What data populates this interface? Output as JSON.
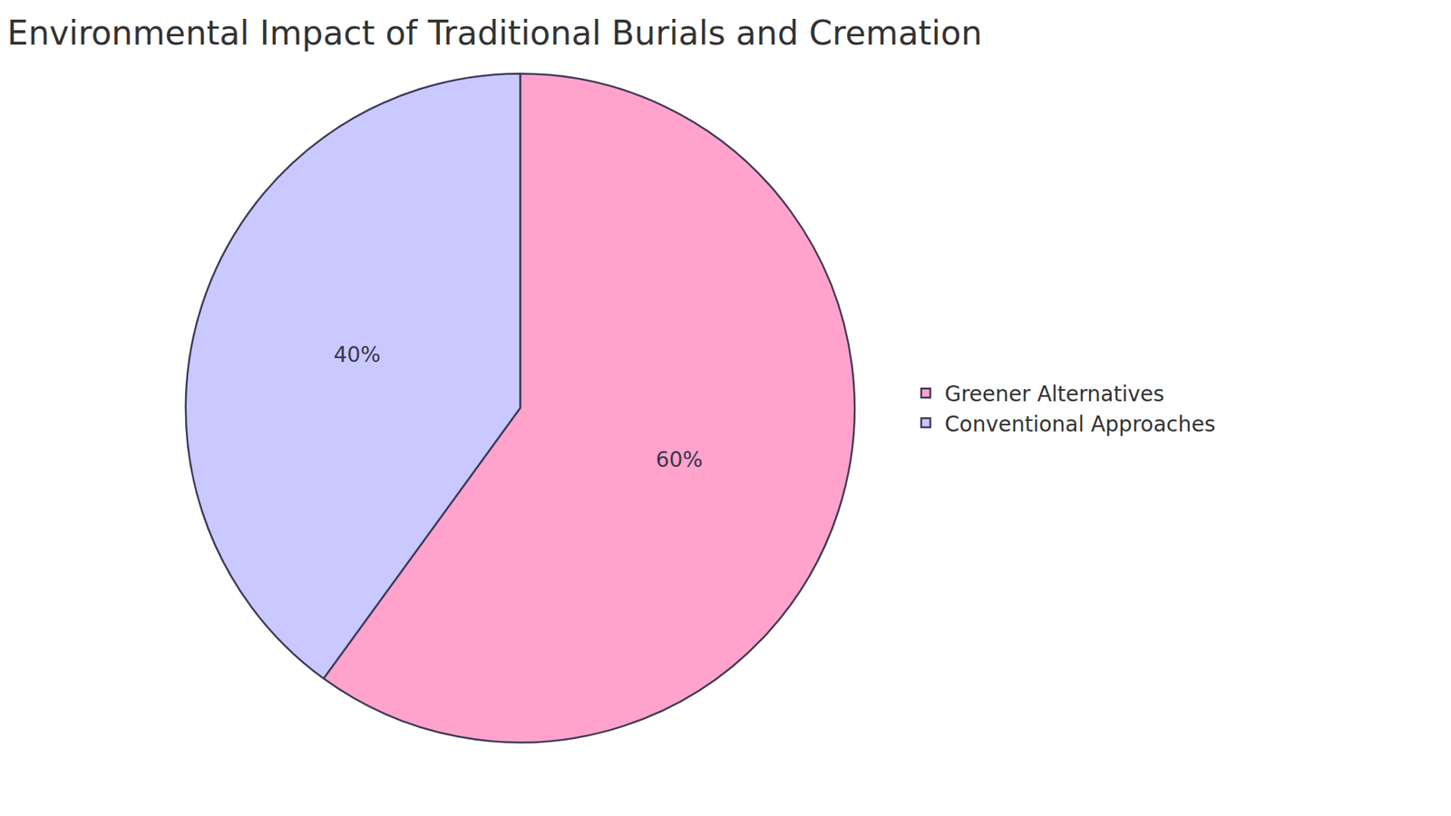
{
  "chart_data": {
    "type": "pie",
    "title": "Environmental Impact of Traditional Burials and Cremation",
    "categories": [
      "Greener Alternatives",
      "Conventional Approaches"
    ],
    "values": [
      60,
      40
    ],
    "value_labels": [
      "60%",
      "40%"
    ],
    "colors": [
      "#ffa3cc",
      "#c9c9ff"
    ],
    "data_labels": true,
    "legend": "right"
  }
}
